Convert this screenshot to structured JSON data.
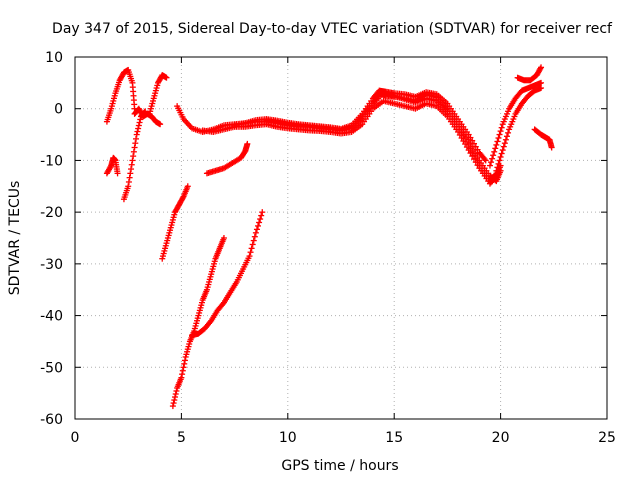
{
  "chart_data": {
    "type": "scatter",
    "title": "Day 347 of 2015, Sidereal Day-to-day VTEC variation (SDTVAR) for receiver recf",
    "xlabel": "GPS time / hours",
    "ylabel": "SDTVAR / TECUs",
    "xlim": [
      0,
      25
    ],
    "ylim": [
      -60,
      10
    ],
    "xticks": [
      "0",
      "5",
      "10",
      "15",
      "20",
      "25"
    ],
    "yticks": [
      "-60",
      "-50",
      "-40",
      "-30",
      "-20",
      "-10",
      "0",
      "10"
    ],
    "grid": true,
    "marker": "+",
    "color": "#ff0000",
    "series": [
      {
        "points": [
          [
            1.5,
            -2.5
          ],
          [
            1.7,
            0
          ],
          [
            1.9,
            3
          ],
          [
            2.1,
            5.5
          ],
          [
            2.3,
            7
          ],
          [
            2.5,
            7.5
          ],
          [
            2.7,
            5
          ],
          [
            2.8,
            0
          ]
        ]
      },
      {
        "points": [
          [
            1.5,
            -12.5
          ],
          [
            1.7,
            -11
          ],
          [
            1.8,
            -9.5
          ],
          [
            1.9,
            -10
          ],
          [
            2.0,
            -12.5
          ]
        ]
      },
      {
        "points": [
          [
            2.3,
            -17.5
          ],
          [
            2.5,
            -15
          ],
          [
            2.7,
            -10
          ],
          [
            2.9,
            -5
          ],
          [
            3.1,
            -1.5
          ],
          [
            3.3,
            -0.5
          ]
        ]
      },
      {
        "points": [
          [
            2.8,
            -1
          ],
          [
            3.0,
            0
          ],
          [
            3.2,
            -1.5
          ],
          [
            3.4,
            -1
          ],
          [
            3.6,
            -1.5
          ],
          [
            3.8,
            -2.5
          ],
          [
            4.0,
            -3
          ]
        ]
      },
      {
        "points": [
          [
            3.5,
            -1
          ],
          [
            3.7,
            2
          ],
          [
            3.9,
            5
          ],
          [
            4.1,
            6.5
          ],
          [
            4.3,
            6
          ]
        ]
      },
      {
        "points": [
          [
            4.1,
            -29
          ],
          [
            4.3,
            -26
          ],
          [
            4.5,
            -23
          ],
          [
            4.7,
            -20
          ],
          [
            4.9,
            -18.5
          ],
          [
            5.1,
            -17
          ],
          [
            5.3,
            -15
          ]
        ]
      },
      {
        "points": [
          [
            4.8,
            0.5
          ],
          [
            5.1,
            -2
          ],
          [
            5.5,
            -3.8
          ],
          [
            6.0,
            -4.5
          ],
          [
            6.5,
            -4
          ],
          [
            7.0,
            -3.2
          ],
          [
            7.5,
            -3
          ],
          [
            8.0,
            -2.8
          ],
          [
            8.5,
            -2.5
          ],
          [
            9.0,
            -2.5
          ],
          [
            9.5,
            -2.8
          ],
          [
            10.0,
            -3.2
          ],
          [
            10.5,
            -3.5
          ],
          [
            11.0,
            -3.5
          ],
          [
            11.5,
            -3.8
          ],
          [
            12.0,
            -4
          ],
          [
            12.5,
            -4.2
          ],
          [
            13.0,
            -3.8
          ],
          [
            13.5,
            -2
          ],
          [
            14.0,
            1
          ],
          [
            14.3,
            3
          ],
          [
            14.6,
            2.5
          ],
          [
            15.0,
            2.3
          ],
          [
            15.5,
            2
          ],
          [
            16.0,
            1.5
          ],
          [
            16.5,
            2.8
          ],
          [
            17.0,
            2.2
          ],
          [
            17.5,
            0
          ],
          [
            18.0,
            -3
          ],
          [
            18.5,
            -6
          ],
          [
            19.0,
            -10
          ],
          [
            19.5,
            -13
          ],
          [
            19.8,
            -14
          ],
          [
            20.0,
            -12
          ]
        ]
      },
      {
        "points": [
          [
            6.0,
            -4.2
          ],
          [
            6.5,
            -4.5
          ],
          [
            7.0,
            -4
          ],
          [
            7.5,
            -3.5
          ],
          [
            8.0,
            -3.5
          ],
          [
            8.5,
            -3.2
          ],
          [
            9.0,
            -3
          ],
          [
            9.5,
            -3.5
          ],
          [
            10.0,
            -3.8
          ],
          [
            10.5,
            -4
          ],
          [
            11.0,
            -4.2
          ],
          [
            11.5,
            -4.3
          ],
          [
            12.0,
            -4.5
          ],
          [
            12.5,
            -4.8
          ],
          [
            13.0,
            -4.5
          ],
          [
            13.5,
            -3
          ],
          [
            14.0,
            0
          ],
          [
            14.5,
            1.5
          ],
          [
            15.0,
            1
          ],
          [
            15.5,
            0.5
          ],
          [
            16.0,
            0
          ],
          [
            16.5,
            1
          ],
          [
            17.0,
            0.5
          ],
          [
            17.5,
            -1.5
          ],
          [
            18.0,
            -4.5
          ],
          [
            18.5,
            -8
          ],
          [
            19.0,
            -11.5
          ],
          [
            19.5,
            -14.5
          ],
          [
            19.8,
            -13
          ],
          [
            20.0,
            -11
          ]
        ]
      },
      {
        "points": [
          [
            7.5,
            -3.2
          ],
          [
            8.0,
            -2.8
          ],
          [
            8.5,
            -2.2
          ],
          [
            9.0,
            -2
          ],
          [
            9.5,
            -2.3
          ],
          [
            10.0,
            -2.7
          ],
          [
            10.5,
            -3
          ],
          [
            11.0,
            -3.2
          ],
          [
            11.5,
            -3.4
          ],
          [
            12.0,
            -3.6
          ],
          [
            12.5,
            -3.9
          ],
          [
            13.0,
            -3.2
          ],
          [
            13.5,
            -1
          ],
          [
            14.0,
            2
          ],
          [
            14.3,
            3.5
          ],
          [
            14.6,
            3.3
          ],
          [
            15.0,
            3
          ],
          [
            15.5,
            2.8
          ],
          [
            16.0,
            2.3
          ],
          [
            16.5,
            3.2
          ],
          [
            17.0,
            2.8
          ],
          [
            17.5,
            1
          ],
          [
            18.0,
            -2
          ],
          [
            18.5,
            -5
          ],
          [
            19.0,
            -8.5
          ],
          [
            19.3,
            -10
          ]
        ]
      },
      {
        "points": [
          [
            9.0,
            -2.2
          ],
          [
            9.5,
            -2.5
          ],
          [
            10.0,
            -3
          ],
          [
            10.5,
            -3.2
          ],
          [
            11.0,
            -3.4
          ],
          [
            11.5,
            -3.6
          ],
          [
            12.0,
            -3.8
          ],
          [
            12.5,
            -4
          ],
          [
            13.0,
            -3.5
          ],
          [
            13.5,
            -1.5
          ],
          [
            14.0,
            1
          ],
          [
            14.5,
            3
          ],
          [
            15.0,
            2.5
          ],
          [
            15.5,
            1.8
          ],
          [
            16.0,
            1.2
          ],
          [
            16.5,
            2
          ],
          [
            17.0,
            1.5
          ],
          [
            17.5,
            -0.5
          ],
          [
            18.0,
            -3.5
          ],
          [
            18.5,
            -7
          ],
          [
            19.0,
            -11
          ],
          [
            19.5,
            -14
          ],
          [
            19.8,
            -12.5
          ]
        ]
      },
      {
        "points": [
          [
            6.2,
            -12.5
          ],
          [
            6.6,
            -12
          ],
          [
            7.0,
            -11.5
          ],
          [
            7.4,
            -10.5
          ],
          [
            7.8,
            -9.5
          ],
          [
            8.0,
            -8.2
          ],
          [
            8.1,
            -6.8
          ]
        ]
      },
      {
        "points": [
          [
            4.6,
            -57.5
          ],
          [
            4.8,
            -54
          ],
          [
            5.0,
            -52
          ],
          [
            5.2,
            -48
          ],
          [
            5.4,
            -45
          ],
          [
            5.6,
            -43
          ],
          [
            5.8,
            -40
          ],
          [
            6.0,
            -37
          ],
          [
            6.2,
            -35
          ],
          [
            6.4,
            -32
          ],
          [
            6.6,
            -29
          ],
          [
            6.8,
            -27
          ],
          [
            7.0,
            -25
          ]
        ]
      },
      {
        "points": [
          [
            5.5,
            -43.8
          ],
          [
            5.8,
            -43.5
          ],
          [
            6.1,
            -42.5
          ],
          [
            6.4,
            -41
          ],
          [
            6.7,
            -39
          ],
          [
            7.0,
            -37.5
          ],
          [
            7.3,
            -35.5
          ],
          [
            7.6,
            -33.5
          ],
          [
            7.9,
            -31
          ],
          [
            8.2,
            -28.5
          ],
          [
            8.5,
            -24
          ],
          [
            8.8,
            -20
          ]
        ]
      },
      {
        "points": [
          [
            19.8,
            -12
          ],
          [
            20.1,
            -8
          ],
          [
            20.4,
            -4
          ],
          [
            20.7,
            -1
          ],
          [
            21.0,
            1
          ],
          [
            21.3,
            2.5
          ],
          [
            21.6,
            3.5
          ],
          [
            21.9,
            4
          ]
        ]
      },
      {
        "points": [
          [
            19.5,
            -11
          ],
          [
            19.8,
            -7
          ],
          [
            20.1,
            -3
          ],
          [
            20.4,
            0
          ],
          [
            20.7,
            2
          ],
          [
            21.0,
            3.5
          ],
          [
            21.3,
            4
          ],
          [
            21.6,
            4.5
          ],
          [
            21.9,
            5
          ]
        ]
      },
      {
        "points": [
          [
            20.8,
            6
          ],
          [
            21.1,
            5.5
          ],
          [
            21.4,
            5.5
          ],
          [
            21.7,
            6.5
          ],
          [
            21.9,
            8
          ]
        ]
      },
      {
        "points": [
          [
            21.6,
            -4
          ],
          [
            21.9,
            -5
          ],
          [
            22.1,
            -5.5
          ],
          [
            22.3,
            -6
          ],
          [
            22.4,
            -7.5
          ]
        ]
      }
    ]
  }
}
